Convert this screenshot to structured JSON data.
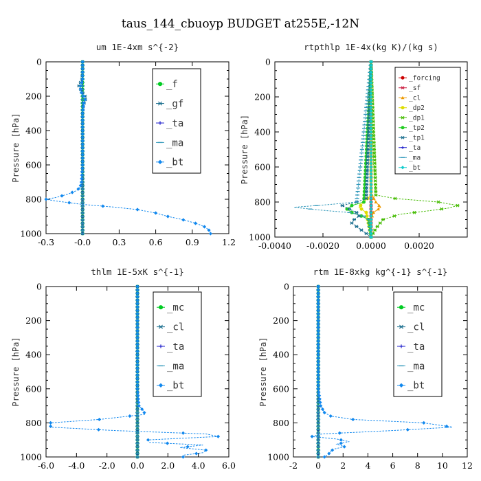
{
  "figure_title": "taus_144_cbuoyp  BUDGET at255E,-12N",
  "chart_data": [
    {
      "type": "line",
      "title": "um  1E-4xm s^{-2}",
      "ylabel": "Pressure [hPa]",
      "xlim": [
        -0.3,
        1.2
      ],
      "ylim": [
        1000,
        0
      ],
      "xticks": [
        -0.3,
        0.0,
        0.3,
        0.6,
        0.9,
        1.2
      ],
      "xticklabels": [
        "-0.3",
        "-0.0",
        "0.3",
        "0.6",
        "0.9",
        "1.2"
      ],
      "yticks": [
        0,
        200,
        400,
        600,
        800,
        1000
      ],
      "legend_position": "top-right",
      "legend_font": 14,
      "series": [
        {
          "name": "_f",
          "color": "#00cc22",
          "marker": "circle",
          "p": [
            0,
            100,
            200,
            300,
            400,
            500,
            600,
            700,
            800,
            900,
            1000
          ],
          "v": [
            0,
            0,
            0,
            0,
            0,
            0,
            0,
            0,
            0,
            0,
            0
          ]
        },
        {
          "name": "_gf",
          "color": "#1a6e8e",
          "marker": "star",
          "p": [
            0,
            50,
            100,
            125,
            140,
            155,
            180,
            200,
            215,
            235,
            260,
            300,
            400,
            500,
            600,
            700,
            800,
            900,
            1000
          ],
          "v": [
            0,
            0,
            -0.005,
            -0.02,
            -0.03,
            -0.02,
            0.0,
            0.02,
            0.025,
            0.015,
            0.005,
            0,
            0,
            0,
            0,
            0,
            0,
            0,
            0
          ]
        },
        {
          "name": "_ta",
          "color": "#2222cc",
          "marker": "plus",
          "p": [
            0,
            1000
          ],
          "v": [
            0,
            0
          ]
        },
        {
          "name": "_ma",
          "color": "#3399bb",
          "marker": "dash",
          "p": [
            0,
            1000
          ],
          "v": [
            0,
            0
          ]
        },
        {
          "name": "_bt",
          "color": "#1188ee",
          "marker": "diamond",
          "p": [
            0,
            100,
            125,
            150,
            180,
            200,
            220,
            240,
            300,
            400,
            500,
            600,
            650,
            700,
            730,
            750,
            770,
            790,
            800,
            810,
            830,
            845,
            860,
            880,
            900,
            915,
            930,
            945,
            960,
            975,
            990,
            1000
          ],
          "v": [
            0,
            0,
            -0.01,
            -0.02,
            -0.01,
            0.01,
            0.02,
            0.01,
            0,
            0,
            0,
            0,
            -0.005,
            -0.01,
            -0.02,
            -0.05,
            -0.12,
            -0.22,
            -0.3,
            -0.22,
            0.0,
            0.25,
            0.45,
            0.6,
            0.7,
            0.8,
            0.88,
            0.95,
            1.0,
            1.03,
            1.05,
            1.05
          ]
        }
      ]
    },
    {
      "type": "line",
      "title": "rtpthlp  1E-4x(kg K)/(kg s)",
      "ylabel": "Pressure [hPa]",
      "xlim": [
        -0.004,
        0.004
      ],
      "ylim": [
        1000,
        0
      ],
      "xticks": [
        -0.004,
        -0.002,
        0.0,
        0.002
      ],
      "xticklabels": [
        "-0.0040",
        "-0.0020",
        "0.0000",
        "0.0020"
      ],
      "yticks": [
        0,
        200,
        400,
        600,
        800,
        1000
      ],
      "legend_position": "top-right",
      "legend_font": 9.5,
      "series": [
        {
          "name": "_forcing",
          "color": "#cc0000",
          "marker": "circle",
          "p": [
            0,
            100,
            200,
            300,
            400,
            500,
            600,
            700,
            800,
            900,
            1000
          ],
          "v": [
            0,
            0,
            0,
            0,
            0,
            0,
            0,
            0,
            0,
            0,
            0
          ]
        },
        {
          "name": "_sf",
          "color": "#cc2244",
          "marker": "star",
          "p": [
            0,
            1000
          ],
          "v": [
            0,
            0
          ]
        },
        {
          "name": "_cl",
          "color": "#ee9900",
          "marker": "triangle",
          "p": [
            0,
            750,
            800,
            830,
            860,
            900,
            1000
          ],
          "v": [
            0,
            0,
            0.0002,
            0.0004,
            0.0001,
            0,
            0
          ]
        },
        {
          "name": "_dp2",
          "color": "#dddd00",
          "marker": "circle",
          "p": [
            0,
            760,
            800,
            830,
            860,
            1000
          ],
          "v": [
            0,
            0,
            -0.0003,
            -0.0005,
            -0.0002,
            0
          ]
        },
        {
          "name": "_dp1",
          "color": "#44bb00",
          "marker": "star",
          "p": [
            0,
            760,
            780,
            800,
            820,
            835,
            850,
            870,
            900,
            950,
            1000
          ],
          "v": [
            0,
            0.0002,
            0.001,
            0.0028,
            0.0036,
            0.0032,
            0.0024,
            0.0012,
            0.0005,
            0.0002,
            0
          ]
        },
        {
          "name": "_tp2",
          "color": "#22cc22",
          "marker": "circle",
          "p": [
            0,
            800,
            820,
            840,
            860,
            880,
            900,
            1000
          ],
          "v": [
            0,
            -0.0003,
            -0.0008,
            -0.001,
            -0.0008,
            -0.0004,
            -0.0001,
            0
          ]
        },
        {
          "name": "_tp1",
          "color": "#1a6e8e",
          "marker": "star",
          "p": [
            0,
            780,
            800,
            820,
            840,
            860,
            880,
            900,
            920,
            940,
            960,
            980,
            1000
          ],
          "v": [
            0,
            -0.0002,
            -0.0006,
            -0.0012,
            -0.0009,
            -0.0006,
            -0.0005,
            -0.0007,
            -0.0008,
            -0.0006,
            -0.0004,
            -0.0002,
            0
          ]
        },
        {
          "name": "_ta",
          "color": "#2222cc",
          "marker": "plus",
          "p": [
            0,
            1000
          ],
          "v": [
            0,
            0
          ]
        },
        {
          "name": "_ma",
          "color": "#3399bb",
          "marker": "dash",
          "p": [
            0,
            800,
            815,
            830,
            845,
            860,
            880,
            900,
            1000
          ],
          "v": [
            0,
            -0.0006,
            -0.0018,
            -0.0032,
            -0.0022,
            -0.0009,
            -0.0003,
            -0.0001,
            0
          ]
        },
        {
          "name": "_bt",
          "color": "#11cccc",
          "marker": "diamond",
          "p": [
            0,
            1000
          ],
          "v": [
            0,
            0
          ]
        }
      ]
    },
    {
      "type": "line",
      "title": "thlm  1E-5xK s^{-1}",
      "ylabel": "Pressure [hPa]",
      "xlim": [
        -6.0,
        6.0
      ],
      "ylim": [
        1000,
        0
      ],
      "xticks": [
        -6,
        -4,
        -2,
        0,
        2,
        4,
        6
      ],
      "xticklabels": [
        "-6.0",
        "-4.0",
        "-2.0",
        "0.0",
        "2.0",
        "4.0",
        "6.0"
      ],
      "yticks": [
        0,
        200,
        400,
        600,
        800,
        1000
      ],
      "legend_position": "top-right",
      "legend_font": 14,
      "series": [
        {
          "name": "_mc",
          "color": "#00cc22",
          "marker": "circle",
          "p": [
            0,
            100,
            200,
            300,
            400,
            500,
            600,
            700,
            800,
            900,
            1000
          ],
          "v": [
            0,
            0,
            0,
            0,
            0,
            0,
            0,
            0,
            0,
            0,
            0
          ]
        },
        {
          "name": "_cl",
          "color": "#1a6e8e",
          "marker": "star",
          "p": [
            0,
            1000
          ],
          "v": [
            0,
            0
          ]
        },
        {
          "name": "_ta",
          "color": "#2222cc",
          "marker": "plus",
          "p": [
            0,
            1000
          ],
          "v": [
            0,
            0
          ]
        },
        {
          "name": "_ma",
          "color": "#3399bb",
          "marker": "dash",
          "p": [
            0,
            1000
          ],
          "v": [
            0,
            0
          ]
        },
        {
          "name": "_bt",
          "color": "#1188ee",
          "marker": "diamond",
          "p": [
            0,
            600,
            700,
            730,
            750,
            780,
            800,
            825,
            845,
            865,
            880,
            900,
            915,
            930,
            945,
            960,
            975,
            990
          ],
          "v": [
            0,
            0,
            0.1,
            0.4,
            0.5,
            -2.5,
            -5.7,
            -5.7,
            -1.5,
            4.5,
            5.3,
            0.7,
            0.8,
            4.3,
            2.8,
            4.5,
            4.3,
            3.0
          ]
        }
      ]
    },
    {
      "type": "line",
      "title": "rtm  1E-8xkg kg^{-1} s^{-1}",
      "ylabel": "Pressure [hPa]",
      "xlim": [
        -2,
        12
      ],
      "ylim": [
        1000,
        0
      ],
      "xticks": [
        -2,
        0,
        2,
        4,
        6,
        8,
        10,
        12
      ],
      "xticklabels": [
        "-2",
        "0",
        "2",
        "4",
        "6",
        "8",
        "10",
        "12"
      ],
      "yticks": [
        0,
        200,
        400,
        600,
        800,
        1000
      ],
      "legend_position": "top-right",
      "legend_font": 14,
      "series": [
        {
          "name": "_mc",
          "color": "#00cc22",
          "marker": "circle",
          "p": [
            0,
            100,
            200,
            300,
            400,
            500,
            600,
            700,
            800,
            900,
            1000
          ],
          "v": [
            0,
            0,
            0,
            0,
            0,
            0,
            0,
            0,
            0,
            0,
            0
          ]
        },
        {
          "name": "_cl",
          "color": "#1a6e8e",
          "marker": "star",
          "p": [
            0,
            1000
          ],
          "v": [
            0,
            0
          ]
        },
        {
          "name": "_ta",
          "color": "#2222cc",
          "marker": "plus",
          "p": [
            0,
            1000
          ],
          "v": [
            0,
            0
          ]
        },
        {
          "name": "_ma",
          "color": "#3399bb",
          "marker": "dash",
          "p": [
            0,
            1000
          ],
          "v": [
            0,
            0
          ]
        },
        {
          "name": "_bt",
          "color": "#1188ee",
          "marker": "diamond",
          "p": [
            0,
            600,
            700,
            740,
            760,
            780,
            800,
            825,
            845,
            865,
            880,
            895,
            910,
            925,
            940,
            955,
            970,
            985,
            1000
          ],
          "v": [
            0,
            0,
            0.2,
            0.5,
            1.0,
            2.8,
            8.5,
            10.8,
            6.0,
            0.3,
            -0.5,
            1.5,
            2.5,
            1.5,
            2.1,
            1.2,
            1.0,
            0.8,
            0.5
          ]
        }
      ]
    }
  ]
}
